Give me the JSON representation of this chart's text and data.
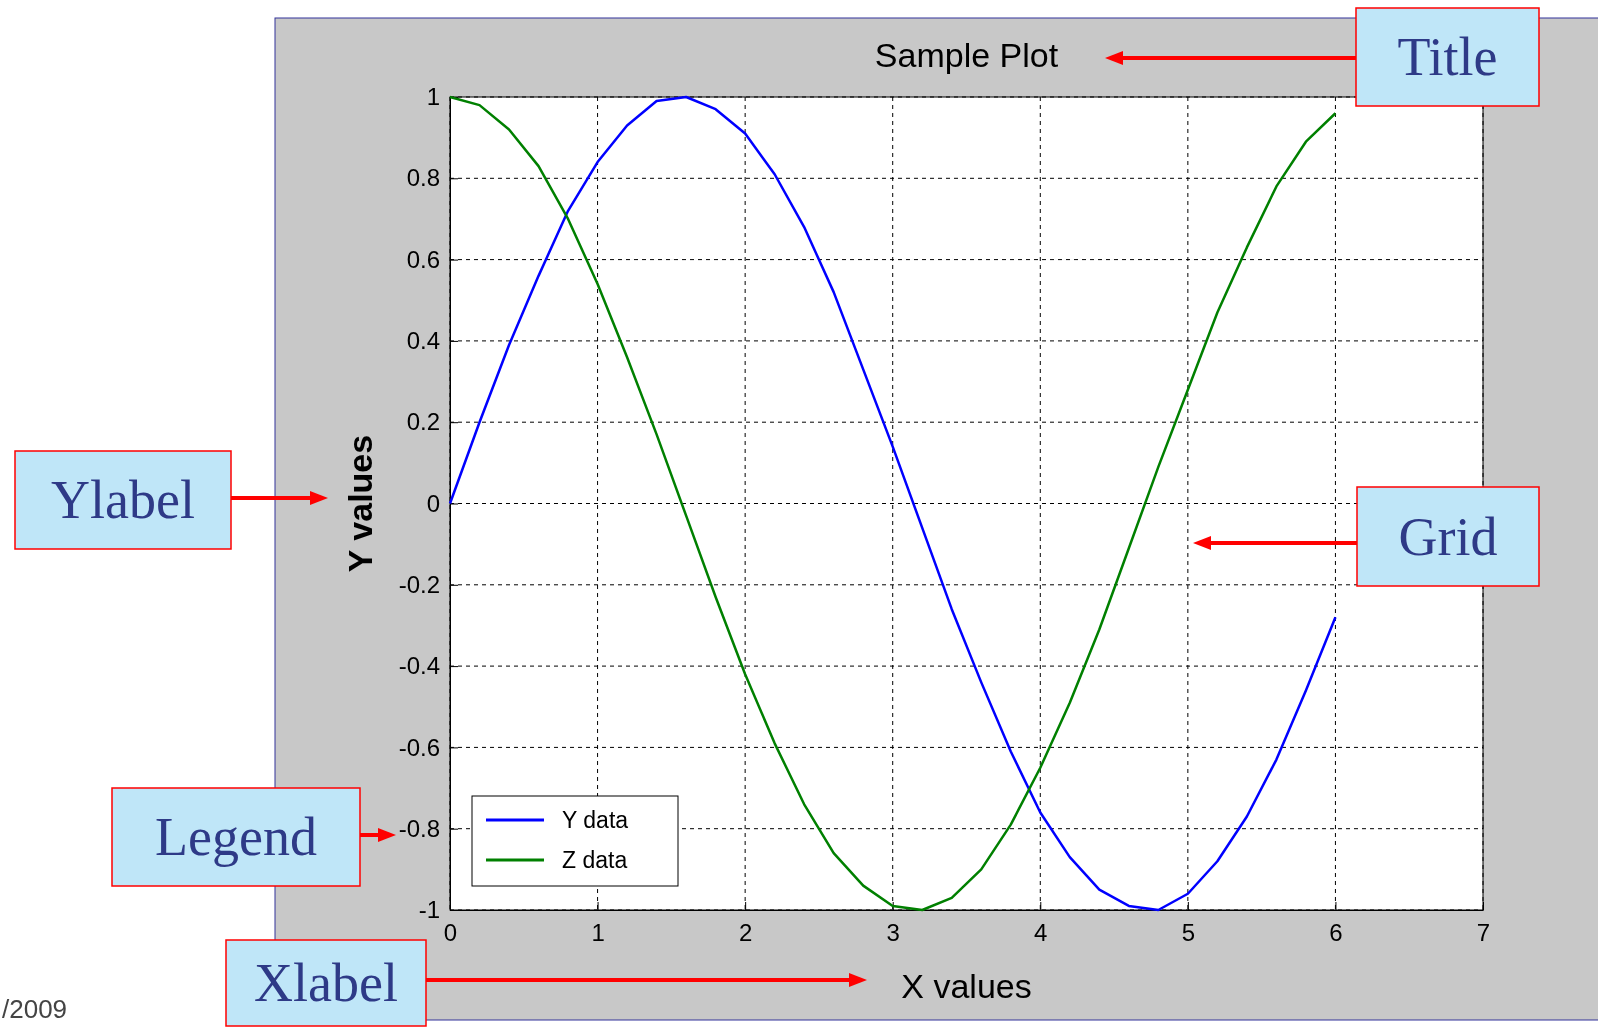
{
  "chart_data": {
    "type": "line",
    "title": "Sample Plot",
    "xlabel": "X values",
    "ylabel": "Y values",
    "x": [
      0,
      0.2,
      0.4,
      0.6,
      0.8,
      1,
      1.2,
      1.4,
      1.6,
      1.8,
      2,
      2.2,
      2.4,
      2.6,
      2.8,
      3,
      3.2,
      3.4,
      3.6,
      3.8,
      4,
      4.2,
      4.4,
      4.6,
      4.8,
      5,
      5.2,
      5.4,
      5.6,
      5.8,
      6
    ],
    "series": [
      {
        "name": "Y data",
        "color": "#0000ff",
        "values": [
          0,
          0.2,
          0.39,
          0.56,
          0.72,
          0.84,
          0.93,
          0.99,
          1,
          0.97,
          0.91,
          0.81,
          0.68,
          0.52,
          0.33,
          0.14,
          -0.06,
          -0.26,
          -0.44,
          -0.61,
          -0.76,
          -0.87,
          -0.95,
          -0.99,
          -1,
          -0.96,
          -0.88,
          -0.77,
          -0.63,
          -0.46,
          -0.28
        ]
      },
      {
        "name": "Z data",
        "color": "#008000",
        "values": [
          1,
          0.98,
          0.92,
          0.83,
          0.7,
          0.54,
          0.36,
          0.17,
          -0.03,
          -0.23,
          -0.42,
          -0.59,
          -0.74,
          -0.86,
          -0.94,
          -0.99,
          -1,
          -0.97,
          -0.9,
          -0.79,
          -0.65,
          -0.49,
          -0.31,
          -0.11,
          0.09,
          0.28,
          0.47,
          0.63,
          0.78,
          0.89,
          0.96
        ]
      }
    ],
    "xlim": [
      0,
      7
    ],
    "xticks": [
      0,
      1,
      2,
      3,
      4,
      5,
      6,
      7
    ],
    "ylim": [
      -1,
      1
    ],
    "yticks": [
      -1,
      -0.8,
      -0.6,
      -0.4,
      -0.2,
      0,
      0.2,
      0.4,
      0.6,
      0.8,
      1
    ],
    "grid": true,
    "legend": "bottom left",
    "line_style": "solid",
    "marker": "none",
    "annotations": [
      "Title",
      "Ylabel",
      "Grid",
      "Legend",
      "Xlabel",
      "/2009"
    ]
  }
}
